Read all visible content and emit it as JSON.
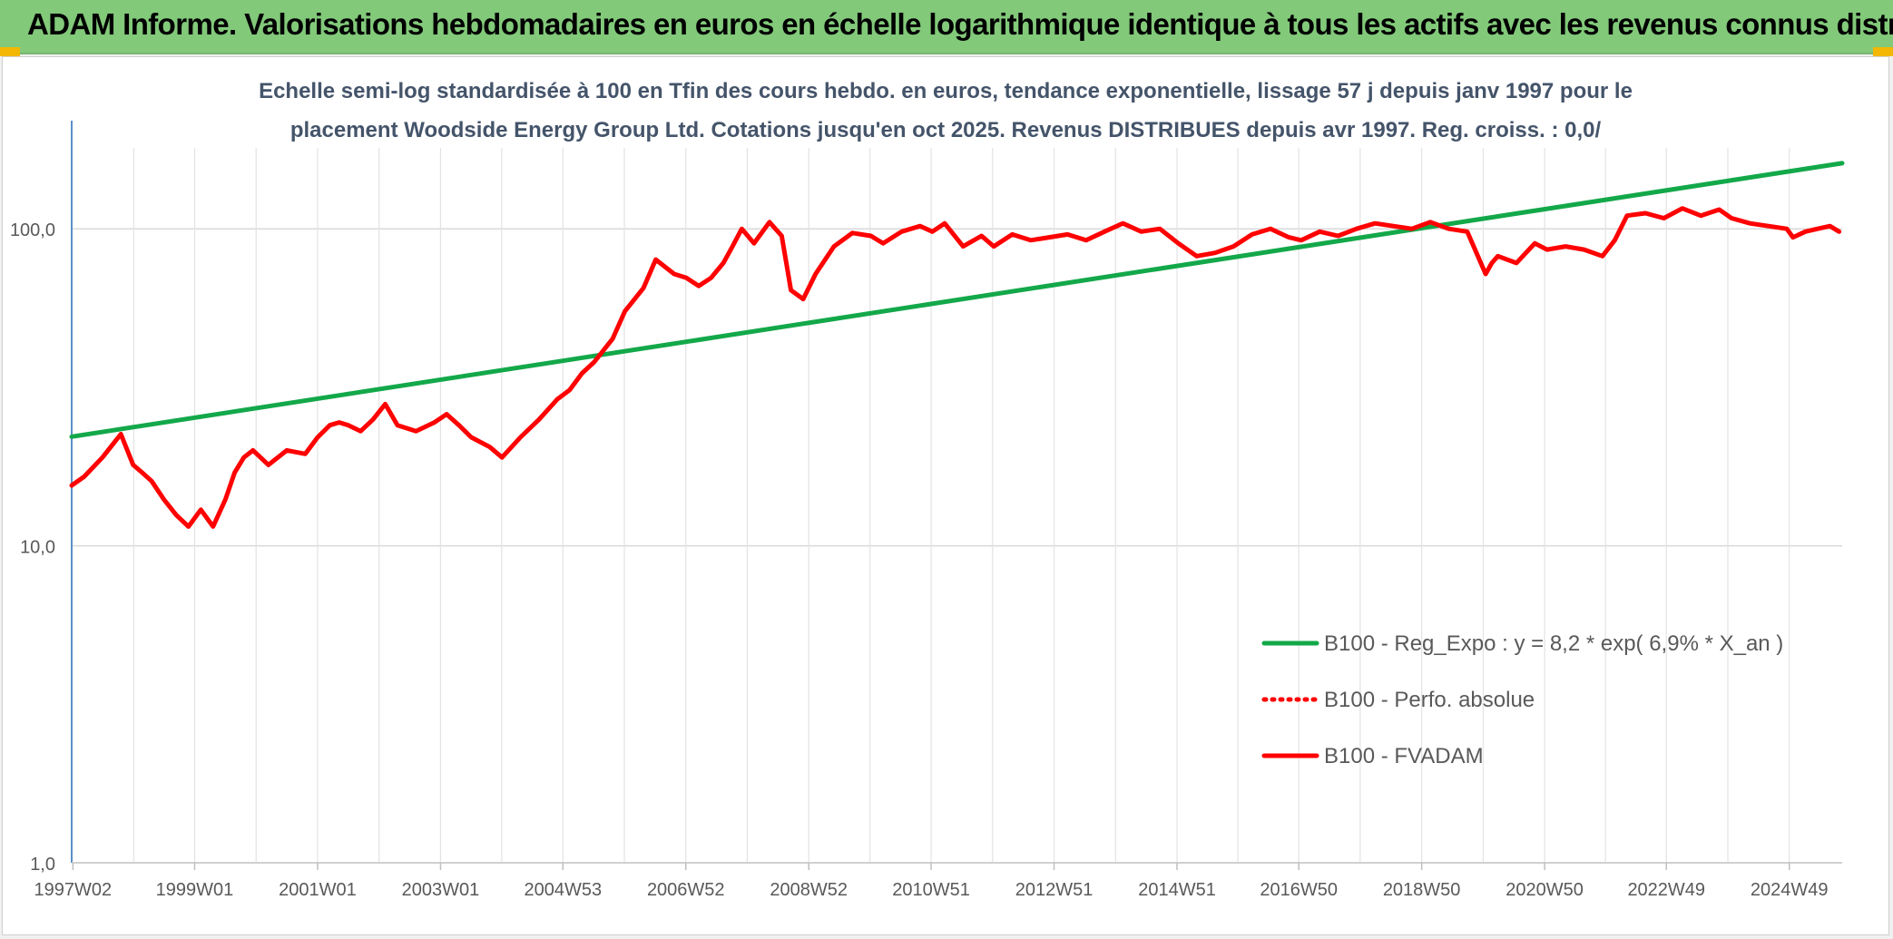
{
  "header": {
    "title": "ADAM Informe. Valorisations hebdomadaires en euros en échelle logarithmique identique à tous les actifs avec les revenus connus distribués",
    "background": "#82c97a"
  },
  "chart_data": {
    "type": "line",
    "title_lines": [
      "Echelle semi-log standardisée à 100 en Tfin des cours hebdo. en euros, tendance exponentielle, lissage 57 j depuis janv 1997 pour le",
      "placement Woodside Energy Group Ltd. Cotations jusqu'en oct 2025. Revenus DISTRIBUES depuis avr 1997. Reg. croiss. : 0,0/"
    ],
    "y_scale": "log",
    "ylim": [
      1,
      180
    ],
    "y_ticks": [
      {
        "value": 100,
        "label": "100,0"
      },
      {
        "value": 10,
        "label": "10,0"
      },
      {
        "value": 1,
        "label": "1,0"
      }
    ],
    "xlim": [
      1997.0,
      2025.8
    ],
    "x_ticks": [
      {
        "year": 1997.02,
        "label": "1997W02"
      },
      {
        "year": 1999.0,
        "label": "1999W01"
      },
      {
        "year": 2001.0,
        "label": "2001W01"
      },
      {
        "year": 2003.0,
        "label": "2003W01"
      },
      {
        "year": 2004.99,
        "label": "2004W53"
      },
      {
        "year": 2006.99,
        "label": "2006W52"
      },
      {
        "year": 2008.99,
        "label": "2008W52"
      },
      {
        "year": 2010.98,
        "label": "2010W51"
      },
      {
        "year": 2012.98,
        "label": "2012W51"
      },
      {
        "year": 2014.98,
        "label": "2014W51"
      },
      {
        "year": 2016.96,
        "label": "2016W50"
      },
      {
        "year": 2018.96,
        "label": "2018W50"
      },
      {
        "year": 2020.96,
        "label": "2020W50"
      },
      {
        "year": 2022.94,
        "label": "2022W49"
      },
      {
        "year": 2024.94,
        "label": "2024W49"
      }
    ],
    "x_minor_gridlines": true,
    "legend_position": "bottom-right",
    "series": [
      {
        "name": "B100 - Reg_Expo : y = 8,2 * exp( 6,9% *  X_an )",
        "color": "#13a84a",
        "style": "solid",
        "x": [
          1997.0,
          2025.8
        ],
        "y": [
          22.1,
          161
        ]
      },
      {
        "name": "B100 - Perfo. absolue",
        "color": "#ff0000",
        "style": "dotted",
        "x": [],
        "y": []
      },
      {
        "name": "B100 - FVADAM",
        "color": "#ff0000",
        "style": "solid",
        "x": [
          1997.0,
          1997.2,
          1997.5,
          1997.8,
          1998.0,
          1998.15,
          1998.3,
          1998.5,
          1998.7,
          1998.9,
          1999.1,
          1999.3,
          1999.5,
          1999.65,
          1999.8,
          1999.95,
          2000.2,
          2000.5,
          2000.8,
          2001.0,
          2001.2,
          2001.35,
          2001.5,
          2001.7,
          2001.9,
          2002.1,
          2002.3,
          2002.6,
          2002.9,
          2003.1,
          2003.3,
          2003.5,
          2003.8,
          2004.0,
          2004.3,
          2004.6,
          2004.9,
          2005.1,
          2005.3,
          2005.5,
          2005.8,
          2006.0,
          2006.3,
          2006.5,
          2006.8,
          2007.0,
          2007.2,
          2007.4,
          2007.6,
          2007.75,
          2007.9,
          2008.1,
          2008.35,
          2008.55,
          2008.7,
          2008.9,
          2009.1,
          2009.4,
          2009.7,
          2010.0,
          2010.2,
          2010.5,
          2010.8,
          2011.0,
          2011.2,
          2011.5,
          2011.8,
          2012.0,
          2012.3,
          2012.6,
          2012.9,
          2013.2,
          2013.5,
          2013.8,
          2014.1,
          2014.4,
          2014.7,
          2015.0,
          2015.3,
          2015.6,
          2015.9,
          2016.2,
          2016.5,
          2016.8,
          2017.0,
          2017.3,
          2017.6,
          2017.9,
          2018.2,
          2018.5,
          2018.8,
          2019.1,
          2019.4,
          2019.7,
          2020.0,
          2020.1,
          2020.2,
          2020.5,
          2020.8,
          2021.0,
          2021.3,
          2021.6,
          2021.9,
          2022.1,
          2022.3,
          2022.6,
          2022.9,
          2023.2,
          2023.5,
          2023.8,
          2024.0,
          2024.3,
          2024.6,
          2024.9,
          2025.0,
          2025.2,
          2025.4,
          2025.6,
          2025.75
        ],
        "y": [
          15.5,
          16.5,
          19,
          22.5,
          18,
          17,
          16,
          14,
          12.5,
          11.5,
          13,
          11.5,
          14,
          17,
          19,
          20,
          18,
          20,
          19.5,
          22,
          24,
          24.5,
          24,
          23,
          25,
          28,
          24,
          23,
          24.5,
          26,
          24,
          22,
          20.5,
          19,
          22,
          25,
          29,
          31,
          35,
          38,
          45,
          55,
          65,
          80,
          72,
          70,
          66,
          70,
          78,
          88,
          100,
          90,
          105,
          95,
          64,
          60,
          72,
          88,
          97,
          95,
          90,
          98,
          102,
          98,
          104,
          88,
          95,
          88,
          96,
          92,
          94,
          96,
          92,
          98,
          104,
          98,
          100,
          90,
          82,
          84,
          88,
          96,
          100,
          94,
          92,
          98,
          95,
          100,
          104,
          102,
          100,
          105,
          100,
          98,
          72,
          78,
          82,
          78,
          90,
          86,
          88,
          86,
          82,
          92,
          110,
          112,
          108,
          116,
          110,
          115,
          108,
          104,
          102,
          100,
          94,
          98,
          100,
          102,
          98
        ]
      }
    ]
  }
}
